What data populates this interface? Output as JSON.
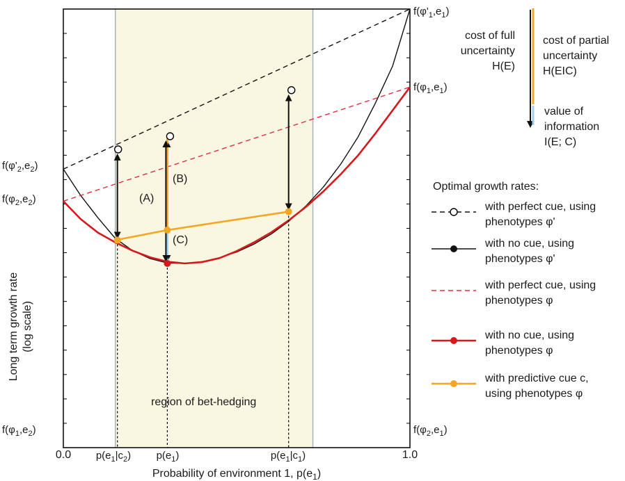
{
  "chart_data": {
    "type": "line",
    "xlabel_main": "Probability of environment 1, p(e",
    "xlabel_sub": "1",
    "xlabel_tail": ")",
    "ylabel_lines": [
      "Long term growth rate",
      "(log scale)"
    ],
    "xlim": [
      0,
      1
    ],
    "ylim": [
      0,
      1
    ],
    "x_tick_values": [
      "0.0",
      "1.0"
    ],
    "grid": false,
    "series": [
      {
        "key": "perfect_phi_prime",
        "style": "dashed",
        "color": "#111111",
        "x": [
          0,
          1
        ],
        "y": [
          0.635,
          1.0
        ]
      },
      {
        "key": "nocue_phi_prime",
        "style": "solid",
        "color": "#111111",
        "x": [
          0,
          0.05,
          0.1,
          0.15,
          0.2,
          0.25,
          0.3,
          0.35,
          0.4,
          0.45,
          0.5,
          0.55,
          0.6,
          0.65,
          0.7,
          0.75,
          0.8,
          0.85,
          0.9,
          0.95,
          1.0
        ],
        "y": [
          0.635,
          0.575,
          0.524,
          0.477,
          0.449,
          0.431,
          0.421,
          0.42,
          0.424,
          0.433,
          0.446,
          0.464,
          0.487,
          0.516,
          0.551,
          0.594,
          0.646,
          0.708,
          0.785,
          0.87,
          1.0
        ]
      },
      {
        "key": "perfect_phi",
        "style": "dashed",
        "color": "#e03040",
        "x": [
          0,
          1
        ],
        "y": [
          0.562,
          0.822
        ]
      },
      {
        "key": "nocue_phi",
        "style": "solid",
        "color": "#d7191c",
        "x": [
          0,
          0.05,
          0.1,
          0.15,
          0.2,
          0.25,
          0.3,
          0.35,
          0.4,
          0.45,
          0.5,
          0.55,
          0.6,
          0.65,
          0.7,
          0.75,
          0.8,
          0.85,
          0.9,
          0.95,
          1.0
        ],
        "y": [
          0.562,
          0.521,
          0.49,
          0.468,
          0.449,
          0.434,
          0.424,
          0.42,
          0.423,
          0.432,
          0.448,
          0.468,
          0.491,
          0.518,
          0.549,
          0.584,
          0.623,
          0.666,
          0.716,
          0.769,
          0.822
        ]
      },
      {
        "key": "predictive_phi",
        "style": "solid",
        "color": "#f5a623",
        "x": [
          0.15,
          0.3,
          0.65
        ],
        "y": [
          0.473,
          0.496,
          0.538
        ]
      }
    ],
    "open_circles": [
      {
        "x": 0.15,
        "y": 0.68
      },
      {
        "x": 0.3,
        "y": 0.71
      },
      {
        "x": 0.65,
        "y": 0.815
      }
    ],
    "bet_hedging_region": [
      0.15,
      0.72
    ],
    "region_label": "region of bet-hedging",
    "arrows": [
      {
        "x": 0.15,
        "y_top": 0.68,
        "y_bottom": 0.473
      },
      {
        "x": 0.3,
        "y_top": 0.71,
        "y_bottom": 0.42
      },
      {
        "x": 0.65,
        "y_top": 0.815,
        "y_bottom": 0.538
      }
    ],
    "x_markers": [
      {
        "x": 0.15,
        "label": "p(e1|c2)"
      },
      {
        "x": 0.3,
        "label": "p(e1)"
      },
      {
        "x": 0.65,
        "label": "p(e1|c1)"
      }
    ],
    "annotations": {
      "A": "(A)",
      "B": "(B)",
      "C": "(C)"
    },
    "left_labels": [
      {
        "label": "f(φ'2,e2)"
      },
      {
        "label": "f(φ2,e2)"
      },
      {
        "label": "f(φ1,e2)"
      }
    ],
    "right_labels": [
      {
        "label": "f(φ'1,e1)"
      },
      {
        "label": "f(φ1,e1)"
      },
      {
        "label": "f(φ2,e1)"
      }
    ],
    "cost_key": {
      "full_lines": [
        "cost of full",
        "uncertainty",
        "H(E)"
      ],
      "partial_lines": [
        "cost of partial",
        "uncertainty",
        "H(E|C)"
      ],
      "info_lines": [
        "value of",
        "information",
        "I(E; C)"
      ]
    },
    "legend": {
      "title": "Optimal growth rates:",
      "placement": "right",
      "items": [
        {
          "lines": [
            "with perfect cue, using",
            "phenotypes φ'"
          ],
          "style": "dashed-circle",
          "color": "#111111"
        },
        {
          "lines": [
            "with no cue, using",
            "phenotypes φ'"
          ],
          "style": "solid-dot",
          "color": "#111111"
        },
        {
          "lines": [
            "with perfect cue, using",
            "phenotypes φ"
          ],
          "style": "dashed",
          "color": "#e03040"
        },
        {
          "lines": [
            "with no cue, using",
            "phenotypes φ"
          ],
          "style": "solid-dot",
          "color": "#d7191c"
        },
        {
          "lines": [
            "with predictive cue c,",
            "using phenotypes φ"
          ],
          "style": "solid-dot",
          "color": "#f5a623"
        }
      ]
    }
  },
  "colors": {
    "region_fill": "#f9f6e2",
    "region_border": "#a8b4bb",
    "red": "#d7191c",
    "red_dash": "#e03040",
    "orange": "#f5a623",
    "light_blue": "#9fd0ee",
    "black": "#111111"
  }
}
